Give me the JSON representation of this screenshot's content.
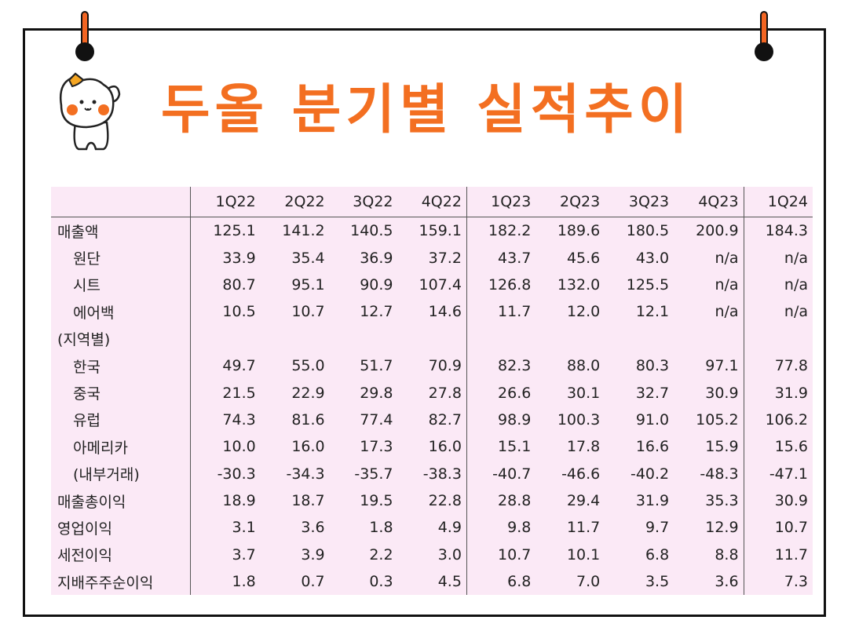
{
  "title": "두올 분기별 실적추이",
  "colors": {
    "title": "#f36f21",
    "table_bg": "#fbe9f6",
    "pin": "#f26522"
  },
  "icons": [
    "pin-icon",
    "cat-mascot-icon"
  ],
  "table": {
    "columns": [
      "1Q22",
      "2Q22",
      "3Q22",
      "4Q22",
      "1Q23",
      "2Q23",
      "3Q23",
      "4Q23",
      "1Q24"
    ],
    "rows": [
      {
        "label": "매출액",
        "indent": false,
        "values": [
          "125.1",
          "141.2",
          "140.5",
          "159.1",
          "182.2",
          "189.6",
          "180.5",
          "200.9",
          "184.3"
        ]
      },
      {
        "label": "원단",
        "indent": true,
        "values": [
          "33.9",
          "35.4",
          "36.9",
          "37.2",
          "43.7",
          "45.6",
          "43.0",
          "n/a",
          "n/a"
        ]
      },
      {
        "label": "시트",
        "indent": true,
        "values": [
          "80.7",
          "95.1",
          "90.9",
          "107.4",
          "126.8",
          "132.0",
          "125.5",
          "n/a",
          "n/a"
        ]
      },
      {
        "label": "에어백",
        "indent": true,
        "values": [
          "10.5",
          "10.7",
          "12.7",
          "14.6",
          "11.7",
          "12.0",
          "12.1",
          "n/a",
          "n/a"
        ]
      },
      {
        "label": "(지역별)",
        "indent": false,
        "values": [
          "",
          "",
          "",
          "",
          "",
          "",
          "",
          "",
          ""
        ]
      },
      {
        "label": "한국",
        "indent": true,
        "values": [
          "49.7",
          "55.0",
          "51.7",
          "70.9",
          "82.3",
          "88.0",
          "80.3",
          "97.1",
          "77.8"
        ]
      },
      {
        "label": "중국",
        "indent": true,
        "values": [
          "21.5",
          "22.9",
          "29.8",
          "27.8",
          "26.6",
          "30.1",
          "32.7",
          "30.9",
          "31.9"
        ]
      },
      {
        "label": "유럽",
        "indent": true,
        "values": [
          "74.3",
          "81.6",
          "77.4",
          "82.7",
          "98.9",
          "100.3",
          "91.0",
          "105.2",
          "106.2"
        ]
      },
      {
        "label": "아메리카",
        "indent": true,
        "values": [
          "10.0",
          "16.0",
          "17.3",
          "16.0",
          "15.1",
          "17.8",
          "16.6",
          "15.9",
          "15.6"
        ]
      },
      {
        "label": "(내부거래)",
        "indent": true,
        "values": [
          "-30.3",
          "-34.3",
          "-35.7",
          "-38.3",
          "-40.7",
          "-46.6",
          "-40.2",
          "-48.3",
          "-47.1"
        ]
      },
      {
        "label": "매출총이익",
        "indent": false,
        "values": [
          "18.9",
          "18.7",
          "19.5",
          "22.8",
          "28.8",
          "29.4",
          "31.9",
          "35.3",
          "30.9"
        ]
      },
      {
        "label": "영업이익",
        "indent": false,
        "values": [
          "3.1",
          "3.6",
          "1.8",
          "4.9",
          "9.8",
          "11.7",
          "9.7",
          "12.9",
          "10.7"
        ]
      },
      {
        "label": "세전이익",
        "indent": false,
        "values": [
          "3.7",
          "3.9",
          "2.2",
          "3.0",
          "10.7",
          "10.1",
          "6.8",
          "8.8",
          "11.7"
        ]
      },
      {
        "label": "지배주주순이익",
        "indent": false,
        "values": [
          "1.8",
          "0.7",
          "0.3",
          "4.5",
          "6.8",
          "7.0",
          "3.5",
          "3.6",
          "7.3"
        ]
      }
    ]
  }
}
